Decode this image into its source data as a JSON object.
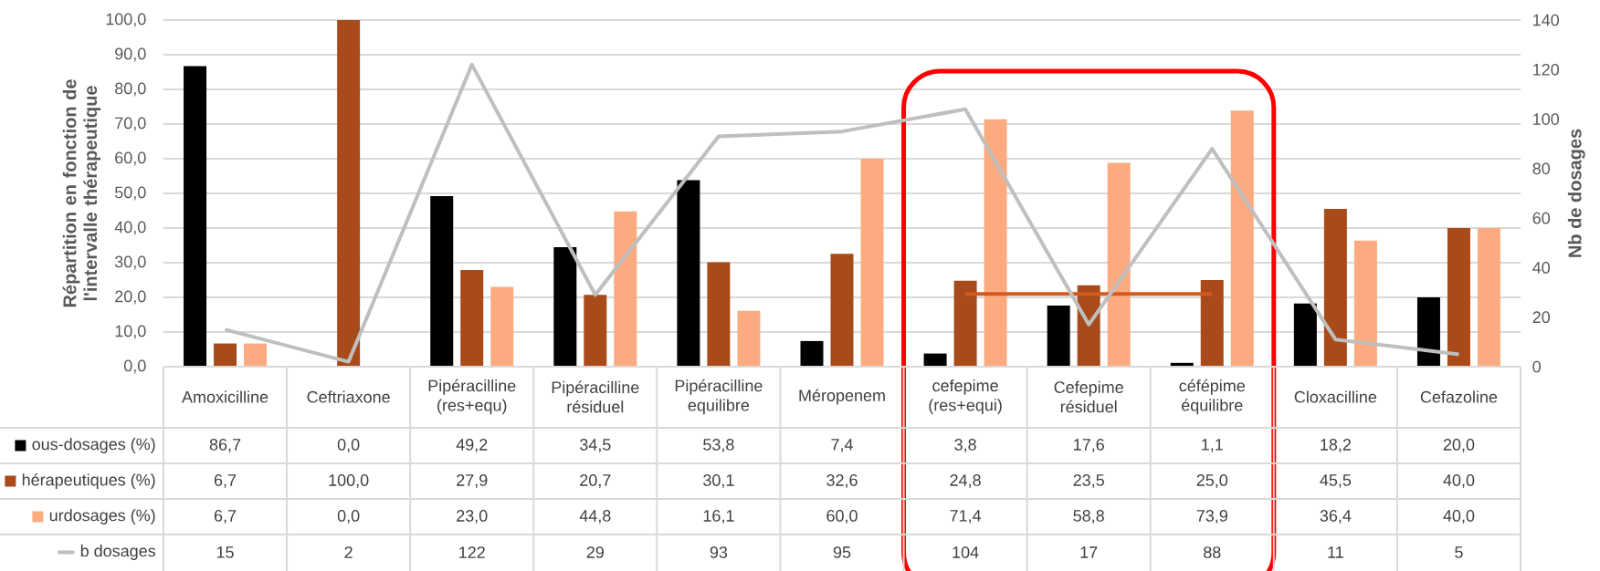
{
  "chart_data": {
    "type": "bar",
    "ylabel": "Répartition en fonction de l'intervalle thérapeutique",
    "y2label": "Nb de dosages",
    "categories": [
      "Amoxicilline",
      "Ceftriaxone",
      "Pipéracilline (res+equ)",
      "Pipéracilline résiduel",
      "Pipéracilline equilibre",
      "Méropenem",
      "cefepime (res+equi)",
      "Cefepime résiduel",
      "céfépime équilibre",
      "Cloxacilline",
      "Cefazoline"
    ],
    "series": [
      {
        "name": "ous-dosages (%)",
        "color": "#000000",
        "values": [
          86.7,
          0.0,
          49.2,
          34.5,
          53.8,
          7.4,
          3.8,
          17.6,
          1.1,
          18.2,
          20.0
        ],
        "value_labels": [
          "86,7",
          "0,0",
          "49,2",
          "34,5",
          "53,8",
          "7,4",
          "3,8",
          "17,6",
          "1,1",
          "18,2",
          "20,0"
        ]
      },
      {
        "name": "hérapeutiques (%)",
        "color": "#a84a1a",
        "values": [
          6.7,
          100.0,
          27.9,
          20.7,
          30.1,
          32.6,
          24.8,
          23.5,
          25.0,
          45.5,
          40.0
        ],
        "value_labels": [
          "6,7",
          "100,0",
          "27,9",
          "20,7",
          "30,1",
          "32,6",
          "24,8",
          "23,5",
          "25,0",
          "45,5",
          "40,0"
        ]
      },
      {
        "name": "urdosages (%)",
        "color": "#fcab80",
        "values": [
          6.7,
          0.0,
          23.0,
          44.8,
          16.1,
          60.0,
          71.4,
          58.8,
          73.9,
          36.4,
          40.0
        ],
        "value_labels": [
          "6,7",
          "0,0",
          "23,0",
          "44,8",
          "16,1",
          "60,0",
          "71,4",
          "58,8",
          "73,9",
          "36,4",
          "40,0"
        ]
      },
      {
        "name": "b dosages",
        "type": "line",
        "axis": "y2",
        "color": "#bfbfbf",
        "values": [
          15,
          2,
          122,
          29,
          93,
          95,
          104,
          17,
          88,
          11,
          5
        ],
        "value_labels": [
          "15",
          "2",
          "122",
          "29",
          "93",
          "95",
          "104",
          "17",
          "88",
          "11",
          "5"
        ]
      },
      {
        "type": "line",
        "color": "#d35a1f",
        "values": [
          null,
          null,
          null,
          null,
          null,
          null,
          21,
          21,
          21,
          null,
          null
        ]
      }
    ],
    "ylim": [
      0,
      100
    ],
    "yticks": [
      {
        "value": 0,
        "label": "0,0"
      },
      {
        "value": 10,
        "label": "10,0"
      },
      {
        "value": 20,
        "label": "20,0"
      },
      {
        "value": 30,
        "label": "30,0"
      },
      {
        "value": 40,
        "label": "40,0"
      },
      {
        "value": 50,
        "label": "50,0"
      },
      {
        "value": 60,
        "label": "60,0"
      },
      {
        "value": 70,
        "label": "70,0"
      },
      {
        "value": 80,
        "label": "80,0"
      },
      {
        "value": 90,
        "label": "90,0"
      },
      {
        "value": 100,
        "label": "100,0"
      }
    ],
    "y2lim": [
      0,
      140
    ],
    "y2ticks": [
      0,
      20,
      40,
      60,
      80,
      100,
      120,
      140
    ],
    "grid": "y",
    "legend": "bottom left"
  }
}
